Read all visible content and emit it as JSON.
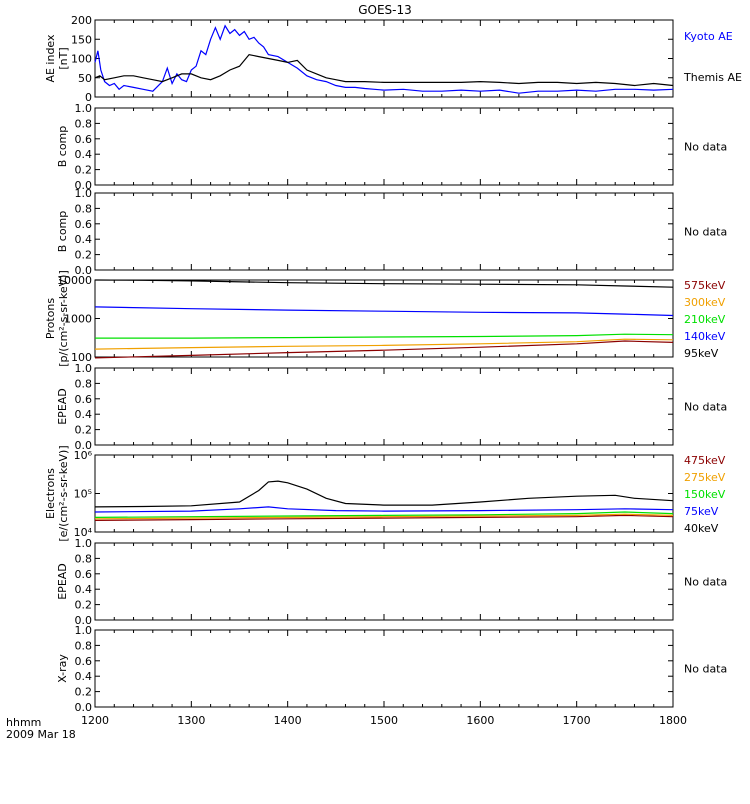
{
  "title": "GOES-13",
  "footer": {
    "time_label": "hhmm",
    "date_label": "2009 Mar 18"
  },
  "x_axis": {
    "min": 1200,
    "max": 1800,
    "ticks": [
      "1200",
      "1300",
      "1400",
      "1500",
      "1600",
      "1700",
      "1800"
    ]
  },
  "colors": {
    "black": "#000000",
    "blue": "#0000ff",
    "green": "#00e000",
    "orange": "#f0a000",
    "red": "#c00000",
    "purple": "#8b0000"
  },
  "panels": [
    {
      "id": "ae",
      "ylabel_lines": [
        "AE index",
        "[nT]"
      ],
      "type": "line",
      "scale": "linear",
      "ylim": [
        0,
        200
      ],
      "yticks": [
        "0",
        "50",
        "100",
        "150",
        "200"
      ],
      "legend": [
        "Kyoto AE",
        "Themis AE"
      ],
      "note": ""
    },
    {
      "id": "bcomp1",
      "ylabel_lines": [
        "B comp"
      ],
      "type": "empty",
      "scale": "linear",
      "ylim": [
        0,
        1
      ],
      "yticks": [
        "0.0",
        "0.2",
        "0.4",
        "0.6",
        "0.8",
        "1.0"
      ],
      "legend": [],
      "note": "No data"
    },
    {
      "id": "bcomp2",
      "ylabel_lines": [
        "B comp"
      ],
      "type": "empty",
      "scale": "linear",
      "ylim": [
        0,
        1
      ],
      "yticks": [
        "0.0",
        "0.2",
        "0.4",
        "0.6",
        "0.8",
        "1.0"
      ],
      "legend": [],
      "note": "No data"
    },
    {
      "id": "protons",
      "ylabel_lines": [
        "Protons",
        "[p/(cm²-s-sr-keV)]"
      ],
      "type": "line",
      "scale": "log",
      "ylim": [
        100,
        10000
      ],
      "yticks": [
        "100",
        "1000",
        "10000"
      ],
      "legend": [
        "575keV",
        "300keV",
        "210keV",
        "140keV",
        "95keV"
      ],
      "note": ""
    },
    {
      "id": "epead1",
      "ylabel_lines": [
        "EPEAD"
      ],
      "type": "empty",
      "scale": "linear",
      "ylim": [
        0,
        1
      ],
      "yticks": [
        "0.0",
        "0.2",
        "0.4",
        "0.6",
        "0.8",
        "1.0"
      ],
      "legend": [],
      "note": "No data"
    },
    {
      "id": "electrons",
      "ylabel_lines": [
        "Electrons",
        "[e/(cm²-s-sr-keV)]"
      ],
      "type": "line",
      "scale": "log",
      "ylim": [
        10000,
        1000000
      ],
      "yticks": [
        "10⁴",
        "10⁵",
        "10⁶"
      ],
      "legend": [
        "475keV",
        "275keV",
        "150keV",
        "75keV",
        "40keV"
      ],
      "note": ""
    },
    {
      "id": "epead2",
      "ylabel_lines": [
        "EPEAD"
      ],
      "type": "empty",
      "scale": "linear",
      "ylim": [
        0,
        1
      ],
      "yticks": [
        "0.0",
        "0.2",
        "0.4",
        "0.6",
        "0.8",
        "1.0"
      ],
      "legend": [],
      "note": "No data"
    },
    {
      "id": "xray",
      "ylabel_lines": [
        "X-ray"
      ],
      "type": "empty",
      "scale": "linear",
      "ylim": [
        0,
        1
      ],
      "yticks": [
        "0.0",
        "0.2",
        "0.4",
        "0.6",
        "0.8",
        "1.0"
      ],
      "legend": [],
      "note": "No data"
    }
  ],
  "chart_data": [
    {
      "type": "line",
      "title": "GOES-13",
      "ylabel": "AE index [nT]",
      "xlim": [
        1200,
        1800
      ],
      "ylim": [
        0,
        200
      ],
      "series": [
        {
          "name": "Kyoto AE",
          "color": "#0000ff",
          "x": [
            1200,
            1203,
            1206,
            1210,
            1215,
            1220,
            1225,
            1230,
            1240,
            1250,
            1260,
            1270,
            1275,
            1280,
            1285,
            1290,
            1295,
            1300,
            1305,
            1310,
            1315,
            1320,
            1325,
            1330,
            1335,
            1340,
            1345,
            1350,
            1355,
            1360,
            1365,
            1370,
            1375,
            1380,
            1390,
            1400,
            1410,
            1420,
            1430,
            1440,
            1450,
            1460,
            1470,
            1480,
            1490,
            1500,
            1520,
            1540,
            1560,
            1580,
            1600,
            1620,
            1640,
            1660,
            1680,
            1700,
            1720,
            1740,
            1760,
            1780,
            1800
          ],
          "values": [
            90,
            120,
            70,
            40,
            30,
            35,
            20,
            30,
            25,
            20,
            15,
            40,
            75,
            35,
            60,
            45,
            40,
            70,
            80,
            120,
            110,
            150,
            180,
            150,
            185,
            165,
            175,
            160,
            170,
            150,
            155,
            140,
            130,
            110,
            105,
            90,
            75,
            55,
            45,
            40,
            30,
            25,
            25,
            22,
            20,
            18,
            20,
            15,
            15,
            18,
            15,
            18,
            10,
            15,
            15,
            18,
            15,
            20,
            20,
            18,
            20
          ]
        },
        {
          "name": "Themis AE",
          "color": "#000000",
          "x": [
            1200,
            1205,
            1210,
            1220,
            1230,
            1240,
            1250,
            1260,
            1270,
            1280,
            1290,
            1300,
            1310,
            1320,
            1330,
            1340,
            1350,
            1360,
            1370,
            1380,
            1390,
            1400,
            1410,
            1420,
            1430,
            1440,
            1450,
            1460,
            1480,
            1500,
            1520,
            1540,
            1560,
            1580,
            1600,
            1620,
            1640,
            1660,
            1680,
            1700,
            1720,
            1740,
            1760,
            1780,
            1800
          ],
          "values": [
            50,
            55,
            45,
            50,
            55,
            55,
            50,
            45,
            40,
            50,
            60,
            60,
            50,
            45,
            55,
            70,
            80,
            110,
            105,
            100,
            95,
            90,
            95,
            70,
            60,
            50,
            45,
            40,
            40,
            38,
            38,
            38,
            38,
            38,
            40,
            38,
            35,
            38,
            38,
            35,
            38,
            35,
            30,
            35,
            30
          ]
        }
      ]
    },
    {
      "type": "line",
      "ylabel": "Protons [p/(cm²-s-sr-keV)]",
      "xlim": [
        1200,
        1800
      ],
      "ylim": [
        100,
        10000
      ],
      "scale": "log",
      "series": [
        {
          "name": "575keV",
          "color": "#8b0000",
          "x": [
            1200,
            1300,
            1400,
            1500,
            1600,
            1700,
            1750,
            1800
          ],
          "values": [
            95,
            110,
            130,
            150,
            180,
            220,
            260,
            240
          ]
        },
        {
          "name": "300keV",
          "color": "#f0a000",
          "x": [
            1200,
            1300,
            1400,
            1500,
            1600,
            1700,
            1750,
            1800
          ],
          "values": [
            160,
            175,
            190,
            200,
            220,
            250,
            290,
            280
          ]
        },
        {
          "name": "210keV",
          "color": "#00e000",
          "x": [
            1200,
            1300,
            1400,
            1500,
            1600,
            1700,
            1750,
            1800
          ],
          "values": [
            310,
            310,
            320,
            330,
            340,
            360,
            390,
            380
          ]
        },
        {
          "name": "140keV",
          "color": "#0000ff",
          "x": [
            1200,
            1300,
            1400,
            1500,
            1600,
            1700,
            1750,
            1800
          ],
          "values": [
            2000,
            1800,
            1650,
            1550,
            1450,
            1400,
            1300,
            1200
          ]
        },
        {
          "name": "95keV",
          "color": "#000000",
          "x": [
            1200,
            1250,
            1300,
            1400,
            1500,
            1600,
            1700,
            1750,
            1800
          ],
          "values": [
            10000,
            9800,
            9500,
            8500,
            8000,
            7800,
            7500,
            7000,
            6500
          ]
        }
      ]
    },
    {
      "type": "line",
      "ylabel": "Electrons [e/(cm²-s-sr-keV)]",
      "xlim": [
        1200,
        1800
      ],
      "ylim": [
        10000,
        1000000
      ],
      "scale": "log",
      "series": [
        {
          "name": "475keV",
          "color": "#8b0000",
          "x": [
            1200,
            1300,
            1400,
            1500,
            1600,
            1700,
            1750,
            1800
          ],
          "values": [
            20000,
            21000,
            22000,
            23000,
            24000,
            25000,
            27000,
            25000
          ]
        },
        {
          "name": "275keV",
          "color": "#f0a000",
          "x": [
            1200,
            1300,
            1400,
            1500,
            1600,
            1700,
            1750,
            1800
          ],
          "values": [
            22000,
            23000,
            24000,
            25000,
            26000,
            27000,
            29000,
            27000
          ]
        },
        {
          "name": "150keV",
          "color": "#00e000",
          "x": [
            1200,
            1300,
            1400,
            1500,
            1600,
            1700,
            1750,
            1800
          ],
          "values": [
            24000,
            25000,
            26000,
            27000,
            28000,
            30000,
            33000,
            30000
          ]
        },
        {
          "name": "75keV",
          "color": "#0000ff",
          "x": [
            1200,
            1300,
            1350,
            1380,
            1400,
            1450,
            1500,
            1600,
            1700,
            1750,
            1800
          ],
          "values": [
            33000,
            35000,
            40000,
            45000,
            40000,
            36000,
            35000,
            36000,
            38000,
            40000,
            38000
          ]
        },
        {
          "name": "40keV",
          "color": "#000000",
          "x": [
            1200,
            1250,
            1300,
            1350,
            1370,
            1380,
            1390,
            1400,
            1420,
            1440,
            1460,
            1500,
            1550,
            1600,
            1650,
            1700,
            1740,
            1760,
            1800
          ],
          "values": [
            45000,
            46000,
            48000,
            60000,
            120000,
            200000,
            210000,
            190000,
            130000,
            75000,
            55000,
            50000,
            50000,
            60000,
            75000,
            85000,
            90000,
            75000,
            65000
          ]
        }
      ]
    }
  ]
}
